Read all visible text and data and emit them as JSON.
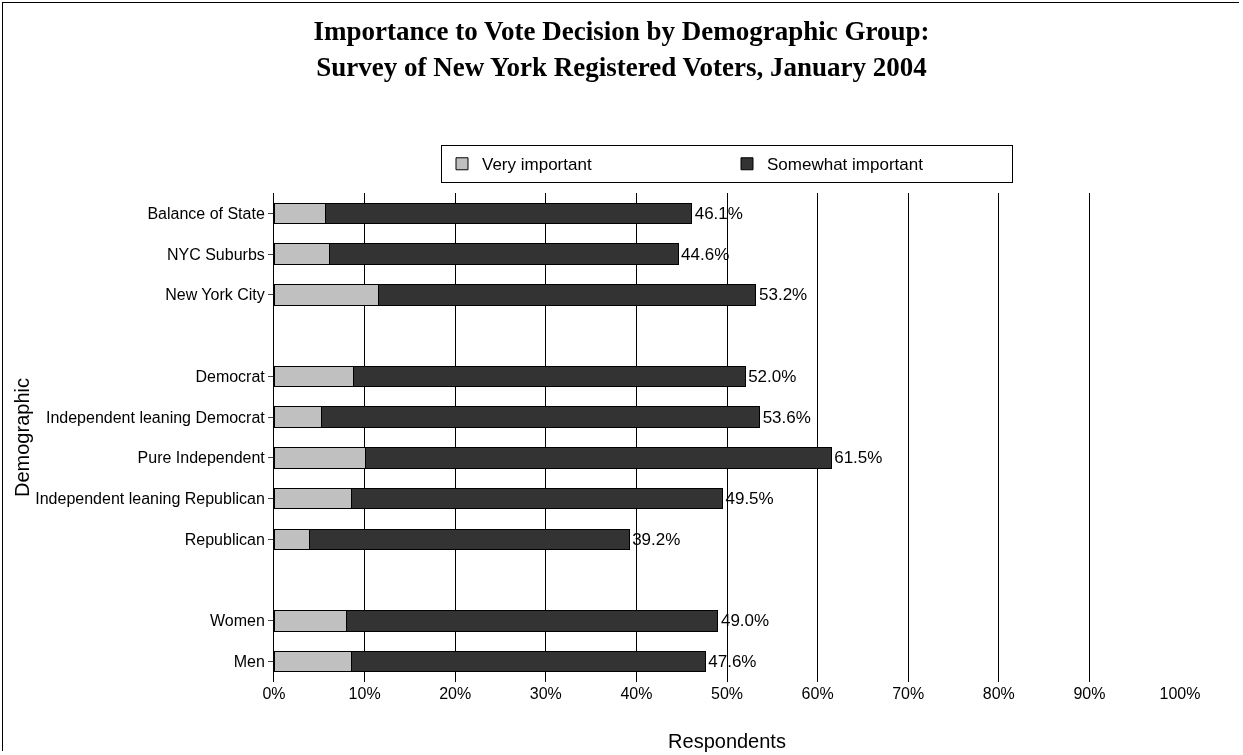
{
  "chart_data": {
    "type": "bar",
    "orientation": "horizontal",
    "stacked": true,
    "title": "Importance to Vote Decision by Demographic Group:\nSurvey of New York Registered Voters, January 2004",
    "xlabel": "Respondents",
    "ylabel": "Demographic",
    "categories": [
      "Balance of State",
      "NYC Suburbs",
      "New York City",
      null,
      "Democrat",
      "Independent leaning Democrat",
      "Pure Independent",
      "Independent leaning Republican",
      "Republican",
      null,
      "Women",
      "Men"
    ],
    "series": [
      {
        "name": "Very important",
        "color": "#c0c0c0",
        "values": [
          5.7,
          6.1,
          11.5,
          null,
          8.8,
          5.2,
          10.1,
          8.5,
          3.9,
          null,
          8.0,
          8.5
        ]
      },
      {
        "name": "Somewhat important",
        "color": "#333333",
        "values": [
          40.4,
          38.5,
          41.7,
          null,
          43.2,
          48.4,
          51.4,
          41.0,
          35.3,
          null,
          41.0,
          39.1
        ]
      }
    ],
    "totals": [
      "46.1%",
      "44.6%",
      "53.2%",
      null,
      "52.0%",
      "53.6%",
      "61.5%",
      "49.5%",
      "39.2%",
      null,
      "49.0%",
      "47.6%"
    ],
    "xlim": [
      0,
      100
    ],
    "xticks": [
      {
        "value": 0,
        "label": "0%"
      },
      {
        "value": 10,
        "label": "10%"
      },
      {
        "value": 20,
        "label": "20%"
      },
      {
        "value": 30,
        "label": "30%"
      },
      {
        "value": 40,
        "label": "40%"
      },
      {
        "value": 50,
        "label": "50%"
      },
      {
        "value": 60,
        "label": "60%"
      },
      {
        "value": 70,
        "label": "70%"
      },
      {
        "value": 80,
        "label": "80%"
      },
      {
        "value": 90,
        "label": "90%"
      },
      {
        "value": 100,
        "label": "100%"
      }
    ],
    "grid": "x",
    "legend": "top"
  }
}
